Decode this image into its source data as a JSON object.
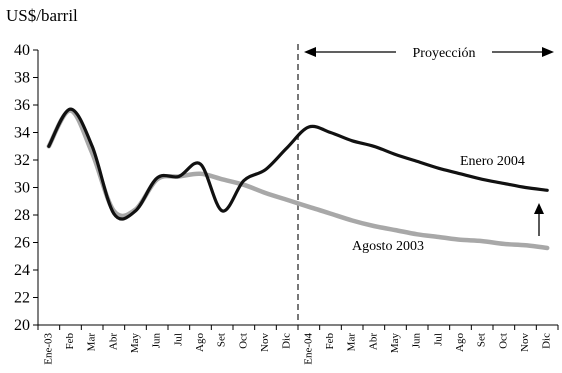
{
  "chart_data": {
    "type": "line",
    "ylabel": "US$/barril",
    "ylim": [
      20,
      40
    ],
    "yticks": [
      20,
      22,
      24,
      26,
      28,
      30,
      32,
      34,
      36,
      38,
      40
    ],
    "categories": [
      "Ene-03",
      "Feb",
      "Mar",
      "Abr",
      "May",
      "Jun",
      "Jul",
      "Ago",
      "Set",
      "Oct",
      "Nov",
      "Dic",
      "Ene-04",
      "Feb",
      "Mar",
      "Abr",
      "May",
      "Jun",
      "Jul",
      "Ago",
      "Set",
      "Oct",
      "Nov",
      "Dic"
    ],
    "grid": false,
    "series": [
      {
        "name": "Enero 2004",
        "color": "#111111",
        "values": [
          33.0,
          35.7,
          33.0,
          28.1,
          28.3,
          30.7,
          30.8,
          31.7,
          28.3,
          30.5,
          31.3,
          32.9,
          34.4,
          34.0,
          33.4,
          33.0,
          32.4,
          31.9,
          31.4,
          31.0,
          30.6,
          30.3,
          30.0,
          29.8
        ]
      },
      {
        "name": "Agosto 2003",
        "color": "#a8a8a8",
        "values": [
          33.0,
          35.6,
          32.5,
          28.3,
          28.4,
          30.6,
          30.8,
          31.0,
          30.6,
          30.2,
          29.6,
          29.1,
          28.6,
          28.1,
          27.6,
          27.2,
          26.9,
          26.6,
          26.4,
          26.2,
          26.1,
          25.9,
          25.8,
          25.6
        ]
      }
    ],
    "annotations": {
      "proyeccion": "Proyección",
      "divider_after_category": "Dic"
    }
  }
}
